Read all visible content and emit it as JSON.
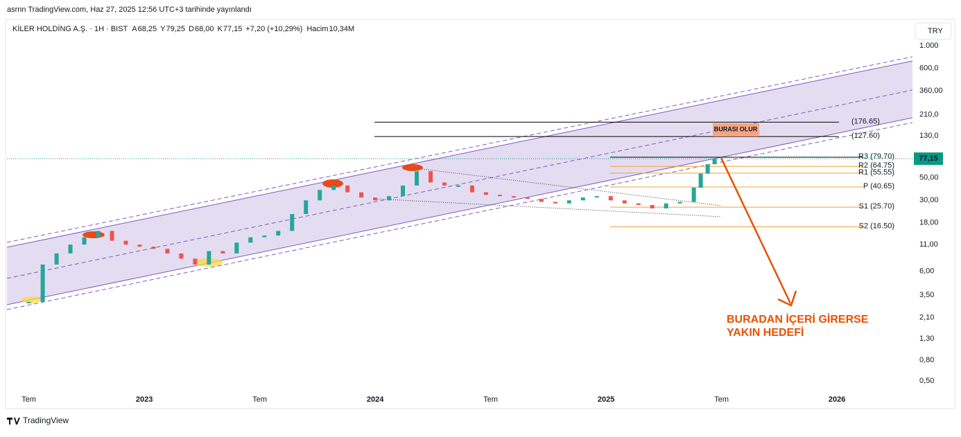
{
  "header": {
    "published": "asrnn TradingView.com, Haz 27, 2025 12:56 UTC+3 tarihinde yayınlandı",
    "symbol": "KİLER HOLDİNG A.Ş. · 1H · BIST",
    "ohlc": [
      {
        "key": "A",
        "text": "68,25"
      },
      {
        "key": "Y",
        "text": "79,25"
      },
      {
        "key": "D",
        "text": "68,00"
      },
      {
        "key": "K",
        "text": "77,15"
      }
    ],
    "change": "+7,20 (+10,29%)",
    "volume_key": "Hacim",
    "volume": "10,34M",
    "currency": "TRY"
  },
  "footer": {
    "brand": "TradingView"
  },
  "chart_data": {
    "type": "candlestick",
    "log_scale": true,
    "grid": false,
    "xlim": [
      2022.405,
      2026.327
    ],
    "xticks": [
      {
        "value": 2022.5,
        "label": "Tem"
      },
      {
        "value": 2023,
        "label": "2023"
      },
      {
        "value": 2023.5,
        "label": "Tem"
      },
      {
        "value": 2024,
        "label": "2024"
      },
      {
        "value": 2024.5,
        "label": "Tem"
      },
      {
        "value": 2025,
        "label": "2025"
      },
      {
        "value": 2025.5,
        "label": "Tem"
      },
      {
        "value": 2026,
        "label": "2026"
      }
    ],
    "ylim": [
      0.267,
      1815
    ],
    "yticks": [
      {
        "value": 1000,
        "label": "1.000"
      },
      {
        "value": 600,
        "label": "600,0"
      },
      {
        "value": 360,
        "label": "360,00"
      },
      {
        "value": 210,
        "label": "210,0"
      },
      {
        "value": 130,
        "label": "130,0"
      },
      {
        "value": 50,
        "label": "50,00"
      },
      {
        "value": 30,
        "label": "30,00"
      },
      {
        "value": 18,
        "label": "18,00"
      },
      {
        "value": 11,
        "label": "11,00"
      },
      {
        "value": 6,
        "label": "6,00"
      },
      {
        "value": 3.5,
        "label": "3,50"
      },
      {
        "value": 2.1,
        "label": "2,10"
      },
      {
        "value": 1.3,
        "label": "1,30"
      },
      {
        "value": 0.8,
        "label": "0,80"
      },
      {
        "value": 0.5,
        "label": "0,50"
      }
    ],
    "up_color": "#26a69a",
    "down_color": "#ef5350",
    "series": [
      {
        "name": "KİLER HOLDİNG A.Ş.",
        "x": [
          2022.5,
          2022.56,
          2022.62,
          2022.68,
          2022.74,
          2022.8,
          2022.86,
          2022.92,
          2022.98,
          2023.04,
          2023.1,
          2023.16,
          2023.22,
          2023.28,
          2023.34,
          2023.4,
          2023.46,
          2023.52,
          2023.58,
          2023.64,
          2023.7,
          2023.76,
          2023.82,
          2023.88,
          2023.94,
          2024.0,
          2024.06,
          2024.12,
          2024.18,
          2024.24,
          2024.3,
          2024.36,
          2024.42,
          2024.48,
          2024.54,
          2024.6,
          2024.66,
          2024.72,
          2024.78,
          2024.84,
          2024.9,
          2024.96,
          2025.02,
          2025.08,
          2025.14,
          2025.2,
          2025.26,
          2025.32,
          2025.38,
          2025.41,
          2025.44,
          2025.47
        ],
        "values": [
          3,
          7,
          9,
          11,
          13,
          15,
          12,
          11,
          10.5,
          10,
          9,
          8,
          7,
          9.5,
          9,
          11.5,
          13,
          13.5,
          15,
          22,
          30,
          38,
          42,
          36,
          32,
          30,
          33,
          42,
          58,
          45,
          42,
          42,
          36,
          34,
          33,
          32,
          31,
          29,
          28,
          30,
          32,
          33,
          30,
          28,
          27,
          25,
          28,
          29,
          40,
          55,
          68,
          77.15
        ]
      }
    ],
    "last_price": {
      "value": 77.15,
      "label": "77,15",
      "color": "#089981"
    },
    "levels": [
      {
        "value": 176.65,
        "label": "(176.65)",
        "color": "#000000"
      },
      {
        "value": 127.6,
        "label": "(127.60)",
        "color": "#000000"
      },
      {
        "value": 79.7,
        "label": "R3 (79.70)",
        "color": "#000000"
      },
      {
        "value": 64.75,
        "label": "R2 (64.75)",
        "color": "#f0a030"
      },
      {
        "value": 55.55,
        "label": "R1 (55.55)",
        "color": "#f0a030"
      },
      {
        "value": 40.65,
        "label": "P (40.65)",
        "color": "#f0a030"
      },
      {
        "value": 25.7,
        "label": "S1 (25.70)",
        "color": "#f0a030"
      },
      {
        "value": 16.5,
        "label": "S2 (16.50)",
        "color": "#f0a030"
      }
    ],
    "annotations": {
      "box": "BURASI OLUR",
      "target_line1": "BURADAN İÇERİ GİRERSE",
      "target_line2": "YAKIN HEDEFİ"
    }
  }
}
